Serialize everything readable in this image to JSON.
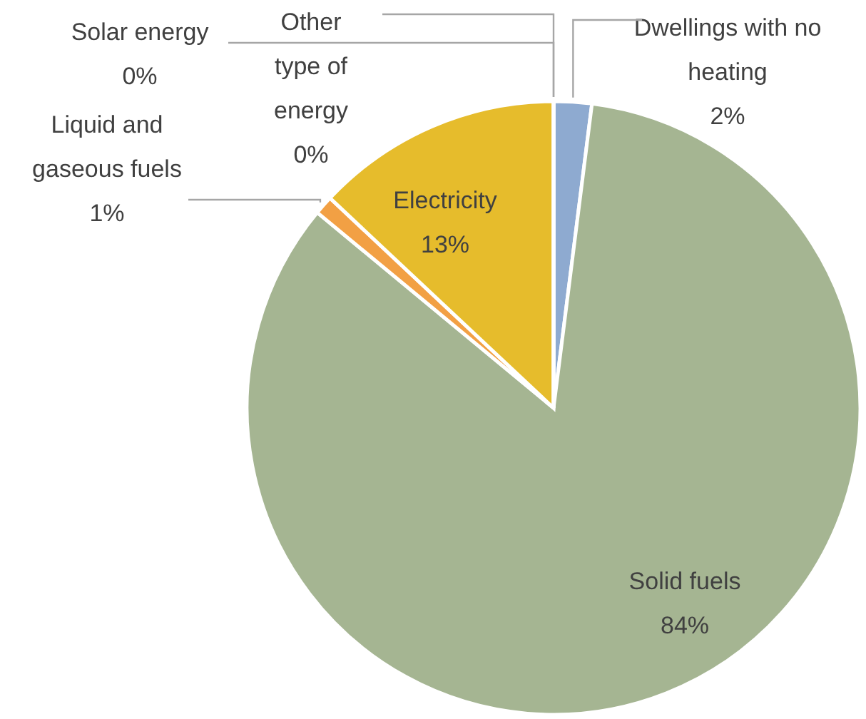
{
  "chart_data": {
    "type": "pie",
    "categories": [
      "Dwellings with no heating",
      "Solid fuels",
      "Liquid and gaseous fuels",
      "Electricity",
      "Solar energy",
      "Other type of energy"
    ],
    "values": [
      2,
      84,
      1,
      13,
      0,
      0
    ],
    "value_labels": [
      "2%",
      "84%",
      "1%",
      "13%",
      "0%",
      "0%"
    ],
    "colors": [
      "#8eaad0",
      "#a5b592",
      "#f2a044",
      "#e6bc2c",
      "#ffd966",
      "#d9d9d9"
    ]
  }
}
